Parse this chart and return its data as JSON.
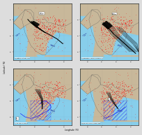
{
  "title": "",
  "panels": [
    {
      "label": "(a) Patiala: Oct-Dec'2011"
    },
    {
      "label": "(b) Kharagpur: Nov'2009-Mar'2015"
    },
    {
      "label": "(c) SS-255: Nov'2008"
    },
    {
      "label": "(d) SS-214: Dec'2008-Jan'2009"
    }
  ],
  "lon_label": "Longitude (°E)",
  "lat_label": "Latitude (°N)",
  "ocean_color": "#87CEEB",
  "land_color": "#C8B89A",
  "border_color": "#555555",
  "hotspot_color": "#FF0000",
  "trajectory_color": "#000000",
  "bbox_color": "#FFFFFF",
  "figsize": [
    4.0,
    3.78
  ],
  "dpi": 50,
  "lon_range": [
    60,
    100
  ],
  "lat_range": [
    5,
    40
  ],
  "tick_lons": [
    65,
    75,
    85,
    95
  ],
  "tick_lats": [
    10,
    20,
    30
  ]
}
